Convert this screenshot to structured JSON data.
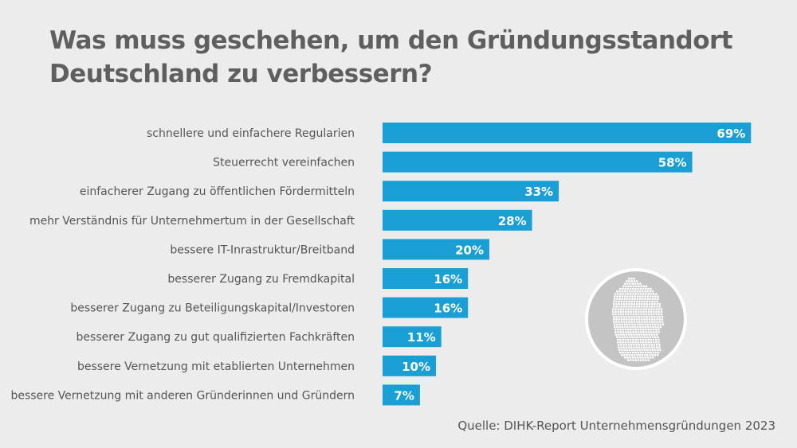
{
  "title_line1": "Was muss geschehen, um den Gründungsstandort",
  "title_line2": "Deutschland zu verbessern?",
  "source": "Quelle: DIHK-Report Unternehmensgründungen 2023",
  "colors": {
    "bar": "#1a9fd4",
    "background": "#ececec",
    "text": "#555555",
    "title": "#5f5f5f",
    "badge_fill": "#c4c4c4",
    "badge_ring": "#ffffff"
  },
  "icons": {
    "badge": "germany-map-icon"
  },
  "chart_data": {
    "type": "bar",
    "orientation": "horizontal",
    "title": "Was muss geschehen, um den Gründungsstandort Deutschland zu verbessern?",
    "unit": "%",
    "categories": [
      "schnellere und einfachere Regularien",
      "Steuerrecht vereinfachen",
      "einfacherer Zugang zu öffentlichen Fördermitteln",
      "mehr Verständnis für Unternehmertum in der Gesellschaft",
      "bessere IT-Inrastruktur/Breitband",
      "besserer Zugang zu Fremdkapital",
      "besserer Zugang zu Beteiligungskapital/Investoren",
      "besserer Zugang zu gut qualifizierten Fachkräften",
      "bessere Vernetzung mit etablierten Unternehmen",
      "bessere Vernetzung mit anderen Gründerinnen und Gründern"
    ],
    "values": [
      69,
      58,
      33,
      28,
      20,
      16,
      16,
      11,
      10,
      7
    ],
    "value_labels": [
      "69%",
      "58%",
      "33%",
      "28%",
      "20%",
      "16%",
      "16%",
      "11%",
      "10%",
      "7%"
    ],
    "xlim": [
      0,
      100
    ],
    "grid": false,
    "legend": "none"
  }
}
